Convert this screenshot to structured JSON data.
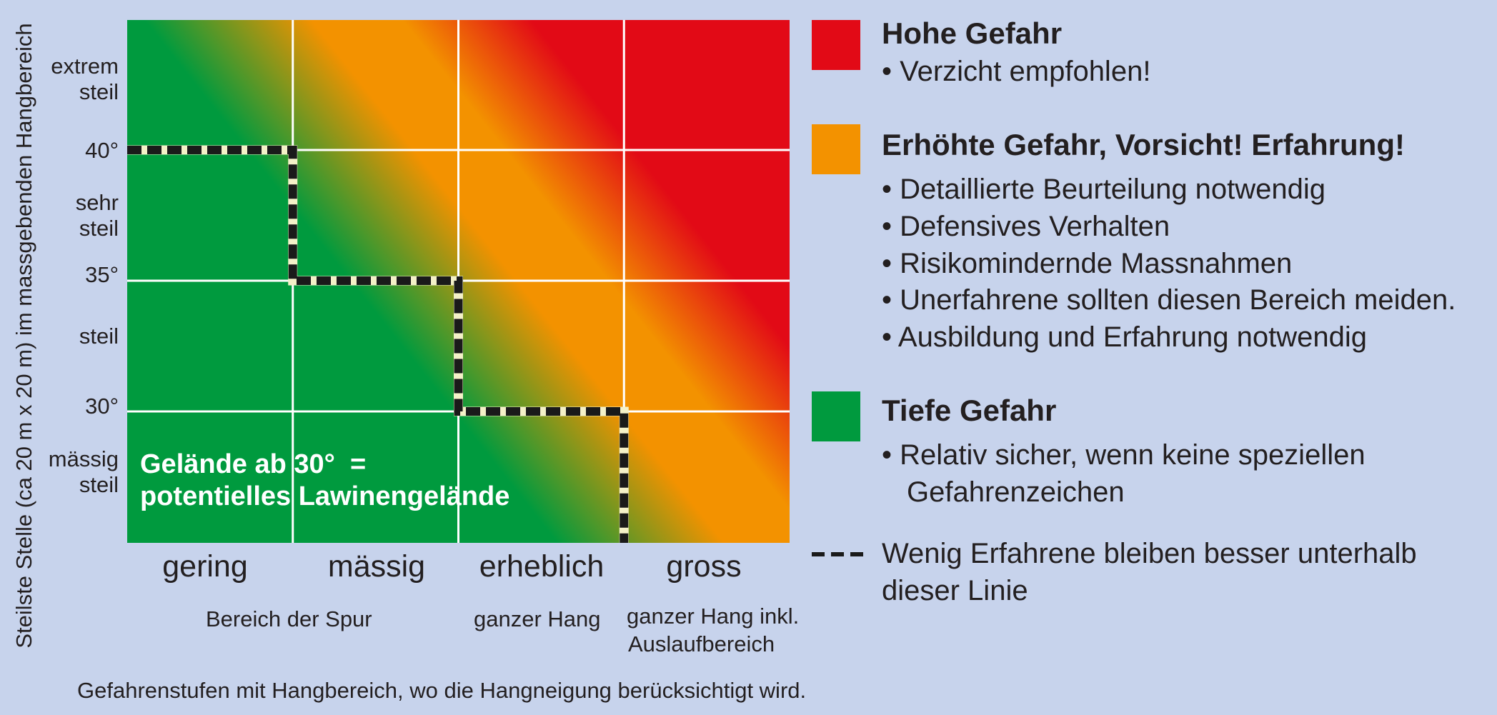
{
  "colors": {
    "background": "#c7d3ec",
    "high": "#e20a16",
    "elevated": "#f39200",
    "low": "#009a3e",
    "grid": "#ffffff",
    "line": "#1a1a1a"
  },
  "chart_data": {
    "type": "heatmap",
    "title": "",
    "xlabel": "",
    "ylabel": "Steilste Stelle (ca 20 m x 20 m) im massgebenden Hangbereich",
    "x_categories": [
      "gering",
      "mässig",
      "erheblich",
      "gross"
    ],
    "x_sublabels": [
      "Bereich der Spur",
      "ganzer Hang",
      "ganzer Hang inkl. Auslaufbereich"
    ],
    "y_tick_values": [
      "40°",
      "35°",
      "30°"
    ],
    "y_band_labels": [
      "extrem steil",
      "sehr steil",
      "steil",
      "mässig steil"
    ],
    "zones": [
      {
        "name": "Tiefe Gefahr",
        "color": "#009a3e"
      },
      {
        "name": "Erhöhte Gefahr",
        "color": "#f39200"
      },
      {
        "name": "Hohe Gefahr",
        "color": "#e20a16"
      }
    ],
    "limit_line": {
      "label": "Wenig Erfahrene bleiben besser unterhalb dieser Linie",
      "steps": [
        {
          "danger_level": "gering",
          "max_slope_deg": 40
        },
        {
          "danger_level": "mässig",
          "max_slope_deg": 35
        },
        {
          "danger_level": "erheblich",
          "max_slope_deg": 30
        },
        {
          "danger_level": "gross",
          "max_slope_deg": null
        }
      ]
    },
    "annotation": "Gelände ab 30°  =\npotentielles Lawinengelände",
    "grid": true
  },
  "labels": {
    "y_axis": "Steilste Stelle (ca 20 m x 20 m) im massgebenden Hangbereich",
    "y_ticks": {
      "extrem_1": "extrem",
      "extrem_2": "steil",
      "deg40": "40°",
      "sehr_1": "sehr",
      "sehr_2": "steil",
      "deg35": "35°",
      "steil": "steil",
      "deg30": "30°",
      "maessig_1": "mässig",
      "maessig_2": "steil"
    },
    "x_ticks": {
      "gering": "gering",
      "maessig": "mässig",
      "erheblich": "erheblich",
      "gross": "gross"
    },
    "x_sub": {
      "spur": "Bereich der Spur",
      "hang": "ganzer Hang",
      "auslauf_1": "ganzer Hang inkl.",
      "auslauf_2": "Auslaufbereich"
    },
    "inner_note": "Gelände ab 30°  =\npotentielles Lawinengelände",
    "caption": "Gefahrenstufen mit Hangbereich, wo die Hangneigung berücksichtigt wird."
  },
  "legend": {
    "high": {
      "title": "Hohe Gefahr",
      "items": [
        "• Verzicht empfohlen!"
      ]
    },
    "elevated": {
      "title": "Erhöhte Gefahr, Vorsicht! Erfahrung!",
      "items": [
        "• Detaillierte Beurteilung notwendig",
        "• Defensives Verhalten",
        "• Risikomindernde Massnahmen",
        "• Unerfahrene sollten diesen Bereich meiden.",
        "• Ausbildung und Erfahrung notwendig"
      ]
    },
    "low": {
      "title": "Tiefe Gefahr",
      "items": [
        "• Relativ sicher, wenn keine speziellen",
        "Gefahrenzeichen"
      ]
    },
    "line": {
      "line1": "Wenig Erfahrene bleiben besser unterhalb",
      "line2": "dieser Linie"
    }
  }
}
